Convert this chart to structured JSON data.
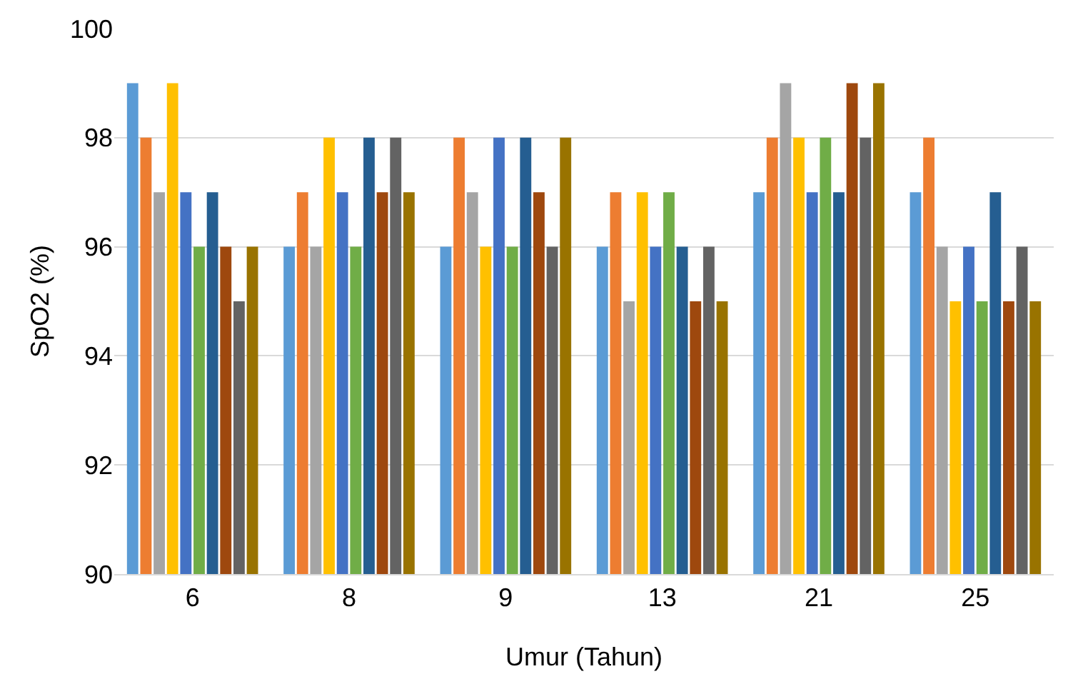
{
  "chart_data": {
    "type": "bar",
    "xlabel": "Umur (Tahun)",
    "ylabel": "SpO2 (%)",
    "categories": [
      "6",
      "8",
      "9",
      "13",
      "21",
      "25"
    ],
    "series": [
      {
        "color": "#5b9bd5",
        "values": [
          99,
          96,
          96,
          96,
          97,
          97
        ]
      },
      {
        "color": "#ed7d31",
        "values": [
          98,
          97,
          98,
          97,
          98,
          98
        ]
      },
      {
        "color": "#a5a5a5",
        "values": [
          97,
          96,
          97,
          95,
          99,
          96
        ]
      },
      {
        "color": "#ffc000",
        "values": [
          99,
          98,
          96,
          97,
          98,
          95
        ]
      },
      {
        "color": "#4472c4",
        "values": [
          97,
          97,
          98,
          96,
          97,
          96
        ]
      },
      {
        "color": "#70ad47",
        "values": [
          96,
          96,
          96,
          97,
          98,
          95
        ]
      },
      {
        "color": "#255e91",
        "values": [
          97,
          98,
          98,
          96,
          97,
          97
        ]
      },
      {
        "color": "#9e480e",
        "values": [
          96,
          97,
          97,
          95,
          99,
          95
        ]
      },
      {
        "color": "#636363",
        "values": [
          95,
          98,
          96,
          96,
          98,
          96
        ]
      },
      {
        "color": "#997300",
        "values": [
          96,
          97,
          98,
          95,
          99,
          95
        ]
      }
    ],
    "ylim": [
      90,
      100
    ],
    "yticks": [
      90,
      92,
      94,
      96,
      98,
      100
    ],
    "grid": "y"
  }
}
